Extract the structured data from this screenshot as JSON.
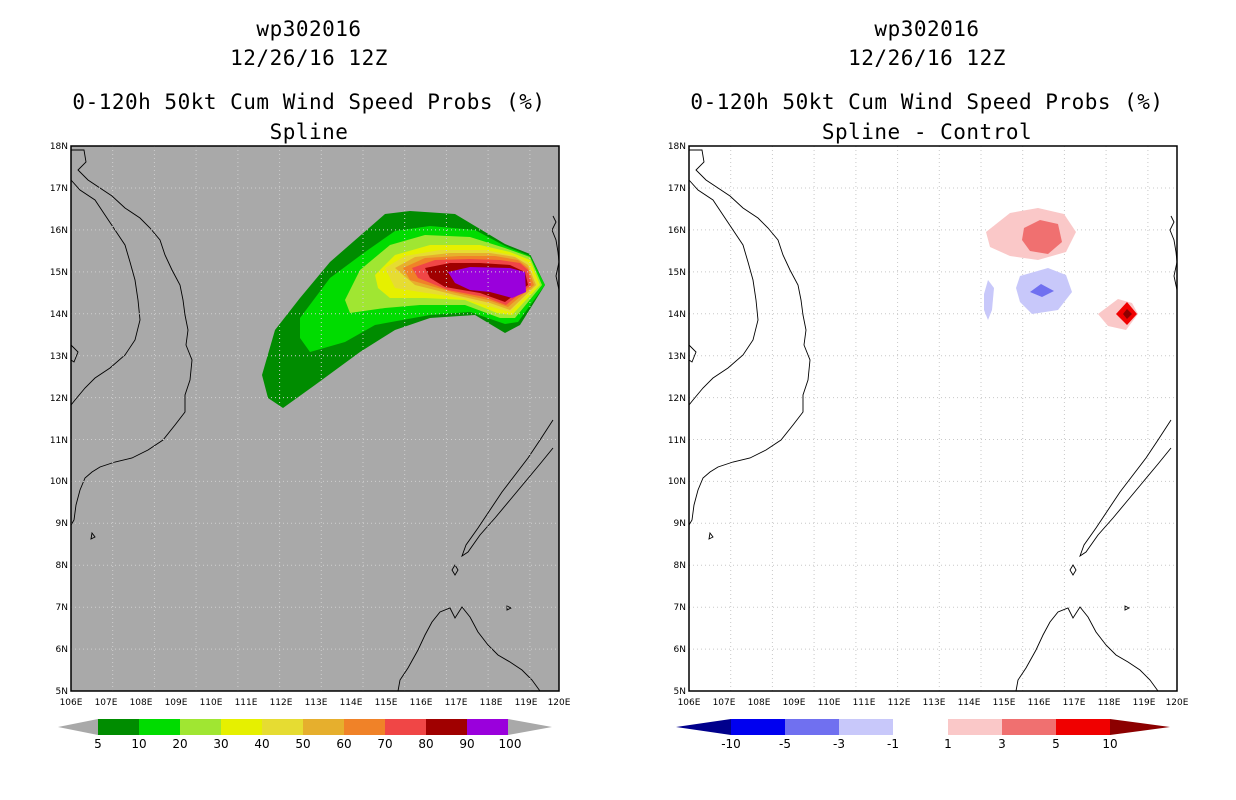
{
  "panels": [
    {
      "storm_id": "wp302016",
      "datetime": "12/26/16 12Z",
      "title": "0-120h 50kt Cum Wind Speed Probs (%)",
      "subtitle": "Spline",
      "map_background": "#a9a9a9",
      "colorbar": {
        "labels": [
          "5",
          "10",
          "20",
          "30",
          "40",
          "50",
          "60",
          "70",
          "80",
          "90",
          "100"
        ],
        "colors": [
          "#008c00",
          "#00dc00",
          "#a0e632",
          "#e6f000",
          "#e6dc32",
          "#e6af2d",
          "#f08228",
          "#f04646",
          "#a00000",
          "#9a00dc"
        ],
        "end_colors": [
          "#a9a9a9",
          "#a9a9a9"
        ]
      }
    },
    {
      "storm_id": "wp302016",
      "datetime": "12/26/16 12Z",
      "title": "0-120h 50kt Cum Wind Speed Probs (%)",
      "subtitle": "Spline - Control",
      "map_background": "#ffffff",
      "colorbar": {
        "labels": [
          "-10",
          "-5",
          "-3",
          "-1",
          "1",
          "3",
          "5",
          "10"
        ],
        "colors": [
          "#0000f0",
          "#7070f0",
          "#c8c8fa",
          "#ffffff",
          "#fac8c8",
          "#f07070",
          "#f00000"
        ],
        "end_colors": [
          "#00008c",
          "#8c0000"
        ]
      }
    }
  ],
  "axes": {
    "lon_labels": [
      "106E",
      "107E",
      "108E",
      "109E",
      "110E",
      "111E",
      "112E",
      "113E",
      "114E",
      "115E",
      "116E",
      "117E",
      "118E",
      "119E",
      "120E"
    ],
    "lat_labels": [
      "5N",
      "6N",
      "7N",
      "8N",
      "9N",
      "10N",
      "11N",
      "12N",
      "13N",
      "14N",
      "15N",
      "16N",
      "17N",
      "18N"
    ],
    "lon_range": [
      106,
      120
    ],
    "lat_range": [
      5,
      18
    ]
  }
}
